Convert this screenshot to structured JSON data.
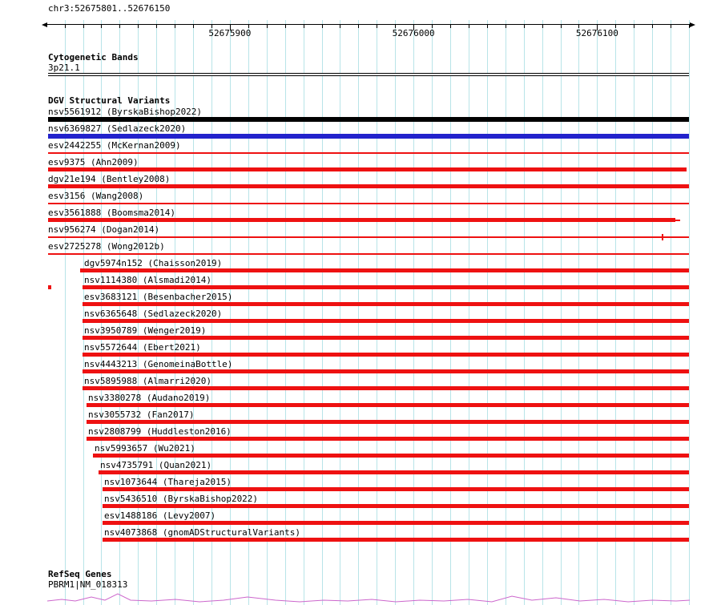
{
  "palette": {
    "black": "#000000",
    "blue": "#2222cc",
    "red": "#ee1111",
    "grid": "#b8e4e8",
    "gene": "#cc66cc"
  },
  "header": {
    "region": "chr3:52675801..52676150",
    "ruler": {
      "start": 52675801,
      "end": 52676150,
      "minor_step": 10,
      "major_ticks": [
        52675900,
        52676000,
        52676100
      ]
    }
  },
  "tracks": {
    "cytogenetic": {
      "title": "Cytogenetic Bands",
      "band": "3p21.1"
    },
    "dgv": {
      "title": "DGV Structural Variants",
      "variants": [
        {
          "label": "nsv5561912 (ByrskaBishop2022)",
          "color": "black",
          "style": "thick",
          "indent": 0,
          "bar": [
            0,
            800
          ]
        },
        {
          "label": "nsv6369827 (Sedlazeck2020)",
          "color": "blue",
          "style": "thick",
          "indent": 0,
          "bar": [
            0,
            800
          ]
        },
        {
          "label": "esv2442255 (McKernan2009)",
          "color": "red",
          "style": "thin",
          "indent": 0,
          "bar": [
            0,
            800
          ]
        },
        {
          "label": "esv9375 (Ahn2009)",
          "color": "red",
          "style": "thick",
          "indent": 0,
          "bar": [
            0,
            797
          ]
        },
        {
          "label": "dgv21e194 (Bentley2008)",
          "color": "red",
          "style": "thick",
          "indent": 0,
          "bar": [
            0,
            800
          ]
        },
        {
          "label": "esv3156 (Wang2008)",
          "color": "red",
          "style": "thin",
          "indent": 0,
          "bar": [
            0,
            800
          ]
        },
        {
          "label": "esv3561888 (Boomsma2014)",
          "color": "red",
          "style": "thick",
          "indent": 0,
          "bar": [
            0,
            783
          ],
          "tail": [
            783,
            789
          ]
        },
        {
          "label": "nsv956274 (Dogan2014)",
          "color": "red",
          "style": "thin",
          "indent": 0,
          "bar": [
            0,
            800
          ],
          "tick": 766
        },
        {
          "label": "esv2725278 (Wong2012b)",
          "color": "red",
          "style": "thin",
          "indent": 0,
          "bar": [
            0,
            800
          ]
        },
        {
          "label": "dgv5974n152 (Chaisson2019)",
          "color": "red",
          "style": "thick",
          "indent": 45,
          "bar": [
            40,
            800
          ]
        },
        {
          "label": "nsv1114380 (Alsmadi2014)",
          "color": "red",
          "style": "thick",
          "indent": 45,
          "bar": [
            43,
            800
          ],
          "left_mark": true
        },
        {
          "label": "esv3683121 (Besenbacher2015)",
          "color": "red",
          "style": "thick",
          "indent": 45,
          "bar": [
            43,
            800
          ]
        },
        {
          "label": "nsv6365648 (Sedlazeck2020)",
          "color": "red",
          "style": "thick",
          "indent": 45,
          "bar": [
            43,
            800
          ]
        },
        {
          "label": "nsv3950789 (Wenger2019)",
          "color": "red",
          "style": "thick",
          "indent": 45,
          "bar": [
            43,
            800
          ]
        },
        {
          "label": "nsv5572644 (Ebert2021)",
          "color": "red",
          "style": "thick",
          "indent": 45,
          "bar": [
            43,
            800
          ]
        },
        {
          "label": "nsv4443213 (GenomeinaBottle)",
          "color": "red",
          "style": "thick",
          "indent": 45,
          "bar": [
            43,
            800
          ]
        },
        {
          "label": "nsv5895988 (Almarri2020)",
          "color": "red",
          "style": "thick",
          "indent": 45,
          "bar": [
            43,
            800
          ]
        },
        {
          "label": "nsv3380278 (Audano2019)",
          "color": "red",
          "style": "thick",
          "indent": 50,
          "bar": [
            48,
            800
          ]
        },
        {
          "label": "nsv3055732 (Fan2017)",
          "color": "red",
          "style": "thick",
          "indent": 50,
          "bar": [
            48,
            800
          ]
        },
        {
          "label": "nsv2808799 (Huddleston2016)",
          "color": "red",
          "style": "thick",
          "indent": 50,
          "bar": [
            48,
            800
          ]
        },
        {
          "label": "nsv5993657 (Wu2021)",
          "color": "red",
          "style": "thick",
          "indent": 58,
          "bar": [
            56,
            800
          ]
        },
        {
          "label": "nsv4735791 (Quan2021)",
          "color": "red",
          "style": "thick",
          "indent": 65,
          "bar": [
            63,
            800
          ]
        },
        {
          "label": "nsv1073644 (Thareja2015)",
          "color": "red",
          "style": "thick",
          "indent": 70,
          "bar": [
            68,
            800
          ]
        },
        {
          "label": "nsv5436510 (ByrskaBishop2022)",
          "color": "red",
          "style": "thick",
          "indent": 70,
          "bar": [
            68,
            800
          ]
        },
        {
          "label": "esv1488186 (Levy2007)",
          "color": "red",
          "style": "thick",
          "indent": 70,
          "bar": [
            68,
            800
          ]
        },
        {
          "label": "nsv4073868 (gnomADStructuralVariants)",
          "color": "red",
          "style": "thick",
          "indent": 70,
          "bar": [
            68,
            800
          ]
        }
      ]
    },
    "refseq": {
      "title": "RefSeq Genes",
      "gene": "PBRM1|NM_018313"
    }
  }
}
